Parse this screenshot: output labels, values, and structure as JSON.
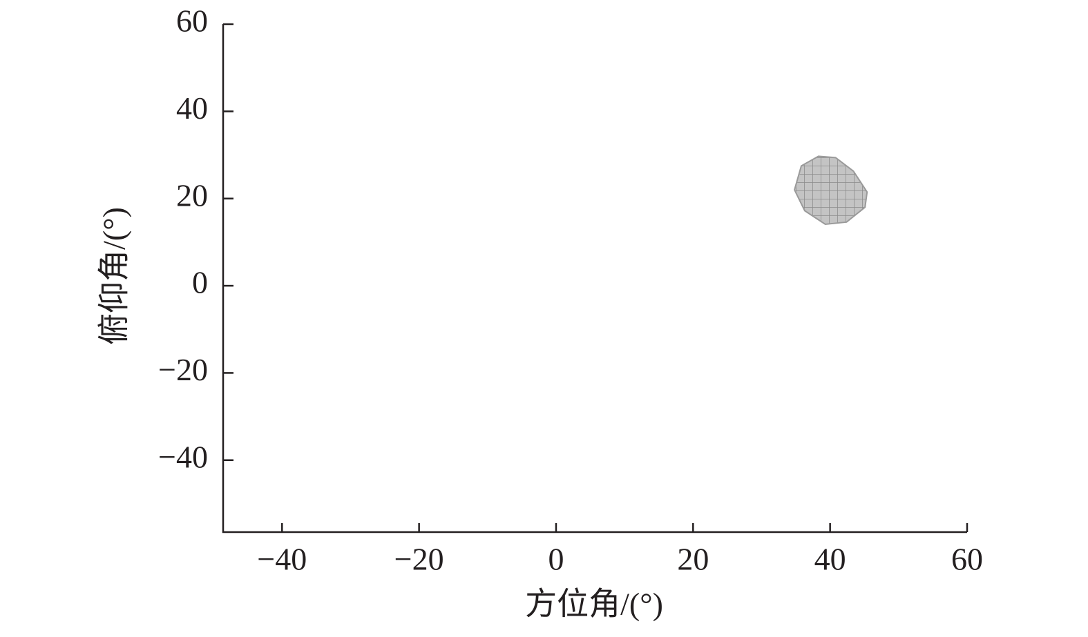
{
  "chart_data": {
    "type": "region",
    "x_label": "方位角/(°)",
    "y_label": "俯仰角/(°)",
    "series": [
      {
        "color": "#9a9a9a",
        "x": [
          35.8,
          38.3,
          40.8,
          43.4,
          45.4,
          45.1,
          42.4,
          39.3,
          36.3,
          34.8
        ],
        "y": [
          27.5,
          29.7,
          29.4,
          26.3,
          21.5,
          18.0,
          14.6,
          14.1,
          17.2,
          22.0
        ]
      }
    ],
    "xlim": [
      -48.6,
      60
    ],
    "ylim": [
      -56.5,
      60
    ],
    "xticks": [
      {
        "value": -40,
        "label": "−40"
      },
      {
        "value": -20,
        "label": "−20"
      },
      0,
      20,
      40,
      60
    ],
    "yticks": [
      {
        "value": -40,
        "label": "−40"
      },
      {
        "value": -20,
        "label": "−20"
      },
      0,
      20,
      40,
      60
    ]
  }
}
